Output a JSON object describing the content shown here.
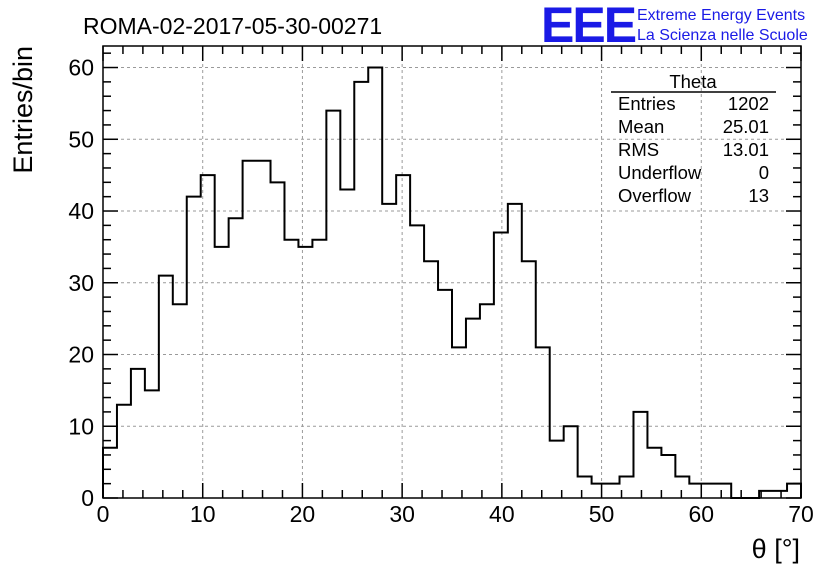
{
  "title": "ROMA-02-2017-05-30-00271",
  "logo": {
    "mark": "EEE",
    "line1": "Extreme Energy Events",
    "line2": "La Scienza nelle Scuole",
    "color": "#1a1ae6"
  },
  "stats": {
    "name": "Theta",
    "rows": [
      {
        "label": "Entries",
        "value": "1202"
      },
      {
        "label": "Mean",
        "value": "25.01"
      },
      {
        "label": "RMS",
        "value": "13.01"
      },
      {
        "label": "Underflow",
        "value": "0"
      },
      {
        "label": "Overflow",
        "value": "13"
      }
    ]
  },
  "chart_data": {
    "type": "bar",
    "histogram": "step",
    "title": "ROMA-02-2017-05-30-00271",
    "xlabel": "θ [°]",
    "ylabel": "Entries/bin",
    "xlim": [
      0,
      70
    ],
    "ylim": [
      0,
      63
    ],
    "grid": true,
    "bin_width": 1.4,
    "bin_start": 0,
    "values": [
      7,
      13,
      18,
      15,
      31,
      27,
      42,
      45,
      35,
      39,
      47,
      47,
      44,
      36,
      35,
      36,
      54,
      43,
      58,
      60,
      41,
      45,
      38,
      33,
      29,
      21,
      25,
      27,
      37,
      41,
      33,
      21,
      8,
      10,
      3,
      2,
      2,
      3,
      12,
      7,
      6,
      3,
      2,
      2,
      2,
      0,
      0,
      1,
      1,
      2
    ],
    "x_ticks": [
      0,
      10,
      20,
      30,
      40,
      50,
      60,
      70
    ],
    "y_ticks": [
      0,
      10,
      20,
      30,
      40,
      50,
      60
    ]
  }
}
